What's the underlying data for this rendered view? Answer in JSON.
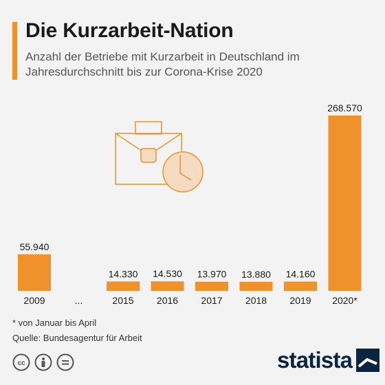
{
  "header": {
    "title": "Die Kurzarbeit-Nation",
    "subtitle": "Anzahl der Betriebe mit Kurzarbeit in Deutschland im Jahresdurchschnitt bis zur Corona-Krise 2020"
  },
  "colors": {
    "bar": "#f0922b",
    "accent": "#f0922b",
    "icon_fill": "#f5dcc0",
    "icon_stroke": "#f0922b",
    "brand": "#0a2540"
  },
  "chart_data": {
    "type": "bar",
    "categories": [
      "2009",
      "...",
      "2015",
      "2016",
      "2017",
      "2018",
      "2019",
      "2020*"
    ],
    "values": [
      55940,
      null,
      14330,
      14530,
      13970,
      13880,
      14160,
      268570
    ],
    "value_labels": [
      "55.940",
      "",
      "14.330",
      "14.530",
      "13.970",
      "13.880",
      "14.160",
      "268.570"
    ],
    "ylim": [
      0,
      268570
    ],
    "grid": false,
    "legend": "none"
  },
  "footer": {
    "footnote": "* von Januar bis April",
    "source": "Quelle: Bundesagentur für Arbeit",
    "license_icons": [
      "cc-icon",
      "attribution-icon",
      "no-derivatives-icon"
    ],
    "brand": "statista"
  }
}
